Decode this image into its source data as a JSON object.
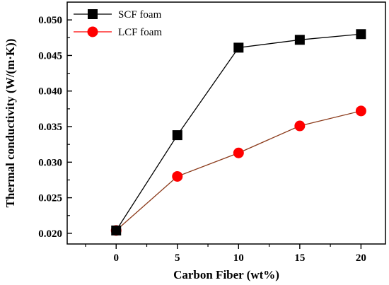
{
  "chart_data": {
    "type": "line",
    "xlabel": "Carbon Fiber (wt%)",
    "ylabel": "Thermal conductivity (W/(m·K))",
    "x": [
      0,
      5,
      10,
      15,
      20
    ],
    "xlim": [
      -4,
      22
    ],
    "ylim": [
      0.0185,
      0.0525
    ],
    "xticks": [
      0,
      5,
      10,
      15,
      20
    ],
    "xtick_labels": [
      "0",
      "5",
      "10",
      "15",
      "20"
    ],
    "yticks": [
      0.02,
      0.025,
      0.03,
      0.035,
      0.04,
      0.045,
      0.05
    ],
    "ytick_labels": [
      "0.020",
      "0.025",
      "0.030",
      "0.035",
      "0.040",
      "0.045",
      "0.050"
    ],
    "grid": false,
    "legend_position": "top-left",
    "series": [
      {
        "name": "SCF foam",
        "marker": "square",
        "color": "#000000",
        "values": [
          0.0204,
          0.0338,
          0.0461,
          0.0472,
          0.048
        ]
      },
      {
        "name": "LCF foam",
        "marker": "circle",
        "color": "#ff0000",
        "line_color": "#8b3a1a",
        "values": [
          0.0204,
          0.028,
          0.0313,
          0.0351,
          0.0372
        ]
      }
    ]
  }
}
